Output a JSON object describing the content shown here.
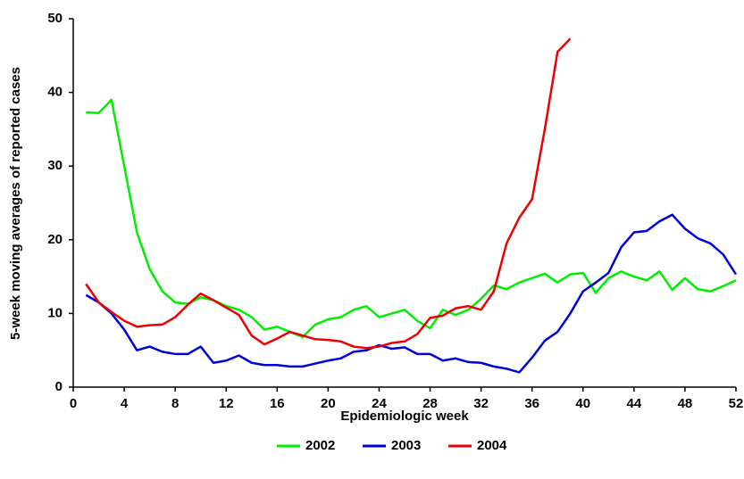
{
  "chart_data": {
    "type": "line",
    "x_label": "Epidemiologic week",
    "y_label": "5-week moving averages of reported cases",
    "x": [
      1,
      2,
      3,
      4,
      5,
      6,
      7,
      8,
      9,
      10,
      11,
      12,
      13,
      14,
      15,
      16,
      17,
      18,
      19,
      20,
      21,
      22,
      23,
      24,
      25,
      26,
      27,
      28,
      29,
      30,
      31,
      32,
      33,
      34,
      35,
      36,
      37,
      38,
      39,
      40,
      41,
      42,
      43,
      44,
      45,
      46,
      47,
      48,
      49,
      50,
      51,
      52
    ],
    "series": [
      {
        "name": "2002",
        "color": "#00ee00",
        "values": [
          37.3,
          37.2,
          39,
          30,
          21,
          16,
          13,
          11.5,
          11.3,
          12.2,
          11.8,
          11,
          10.5,
          9.5,
          7.8,
          8.2,
          7.5,
          6.8,
          8.5,
          9.2,
          9.5,
          10.5,
          11,
          9.5,
          10,
          10.5,
          9,
          8,
          10.5,
          9.8,
          10.5,
          12,
          13.8,
          13.3,
          14.2,
          14.8,
          15.4,
          14.2,
          15.3,
          15.5,
          12.8,
          14.8,
          15.7,
          15,
          14.5,
          15.7,
          13.2,
          14.8,
          13.3,
          13,
          13.7,
          14.5
        ]
      },
      {
        "name": "2003",
        "color": "#0000dd",
        "values": [
          12.5,
          11.5,
          10,
          7.8,
          5,
          5.5,
          4.8,
          4.5,
          4.5,
          5.5,
          3.3,
          3.6,
          4.3,
          3.3,
          3,
          3,
          2.8,
          2.8,
          3.2,
          3.6,
          3.9,
          4.8,
          5,
          5.7,
          5.2,
          5.4,
          4.5,
          4.5,
          3.6,
          3.9,
          3.4,
          3.3,
          2.8,
          2.5,
          2,
          4,
          6.3,
          7.5,
          10,
          13,
          14.2,
          15.5,
          19,
          21,
          21.2,
          22.5,
          23.4,
          21.5,
          20.2,
          19.5,
          18,
          15.3
        ]
      },
      {
        "name": "2004",
        "color": "#ee0000",
        "values": [
          14,
          11.5,
          10.2,
          9,
          8.2,
          8.4,
          8.5,
          9.5,
          11.2,
          12.7,
          11.8,
          10.8,
          9.8,
          7,
          5.8,
          6.6,
          7.5,
          7,
          6.5,
          6.4,
          6.2,
          5.5,
          5.3,
          5.5,
          6,
          6.2,
          7.2,
          9.4,
          9.7,
          10.7,
          11,
          10.5,
          13,
          19.5,
          23,
          25.5,
          35,
          45.5,
          47.3,
          null,
          null,
          null,
          null,
          null,
          null,
          null,
          null,
          null,
          null,
          null,
          null,
          null
        ]
      }
    ],
    "xlim": [
      0,
      52
    ],
    "xticks": [
      0,
      4,
      8,
      12,
      16,
      20,
      24,
      28,
      32,
      36,
      40,
      44,
      48,
      52
    ],
    "ylim": [
      0,
      50
    ],
    "yticks": [
      0,
      10,
      20,
      30,
      40,
      50
    ],
    "grid": false,
    "legend": "bottom"
  }
}
